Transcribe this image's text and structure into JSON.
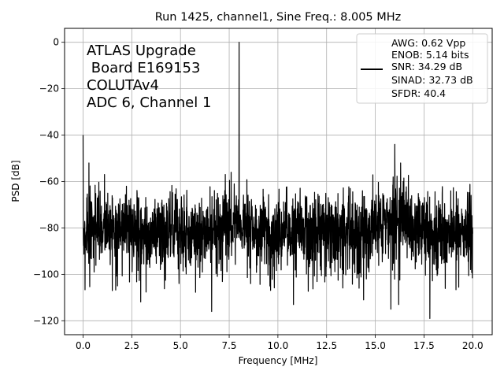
{
  "chart_data": {
    "type": "line",
    "title": "Run 1425, channel1, Sine Freq.: 8.005 MHz",
    "xlabel": "Frequency [MHz]",
    "ylabel": "PSD [dB]",
    "xlim": [
      -0.95,
      21.0
    ],
    "ylim": [
      -126,
      6
    ],
    "xticks": [
      0.0,
      2.5,
      5.0,
      7.5,
      10.0,
      12.5,
      15.0,
      17.5,
      20.0
    ],
    "xtick_labels": [
      "0.0",
      "2.5",
      "5.0",
      "7.5",
      "10.0",
      "12.5",
      "15.0",
      "17.5",
      "20.0"
    ],
    "yticks": [
      0,
      -20,
      -40,
      -60,
      -80,
      -100,
      -120
    ],
    "ytick_labels": [
      "0",
      "−20",
      "−40",
      "−60",
      "−80",
      "−100",
      "−120"
    ],
    "grid": true,
    "series_color": "#000000",
    "annotation_lines": [
      "ATLAS Upgrade",
      " Board E169153",
      "COLUTAv4",
      "ADC 6, Channel 1"
    ],
    "legend": {
      "placement": "top-right",
      "lines": [
        "AWG: 0.62 Vpp",
        "ENOB: 5.14 bits",
        "SNR: 34.29 dB",
        "SINAD: 32.73 dB",
        "SFDR: 40.4"
      ]
    },
    "spectrum": {
      "x_range": [
        0.0,
        20.0
      ],
      "noise_floor_db": -82,
      "signal_peak": {
        "x": 8.005,
        "y": 0
      },
      "dc_peak": {
        "x": 0.0,
        "y": -40
      },
      "harmonic_peaks": [
        {
          "x": 16.0,
          "y": -44
        },
        {
          "x": 15.8,
          "y": -50
        },
        {
          "x": 16.3,
          "y": -52
        },
        {
          "x": 0.3,
          "y": -52
        },
        {
          "x": 1.1,
          "y": -57
        },
        {
          "x": 7.6,
          "y": -56
        },
        {
          "x": 7.3,
          "y": -57
        }
      ],
      "deep_dips": [
        {
          "x": 6.6,
          "y": -116
        },
        {
          "x": 17.8,
          "y": -119
        },
        {
          "x": 15.8,
          "y": -115
        },
        {
          "x": 16.2,
          "y": -113
        },
        {
          "x": 10.8,
          "y": -113
        },
        {
          "x": 1.5,
          "y": -107
        },
        {
          "x": 14.4,
          "y": -111
        },
        {
          "x": 8.6,
          "y": -104
        }
      ]
    }
  }
}
